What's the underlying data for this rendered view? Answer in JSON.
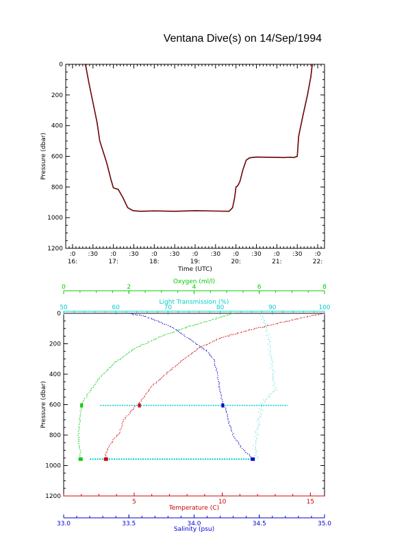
{
  "page": {
    "title": "Ventana Dive(s) on 14/Sep/1994"
  },
  "chart_data": [
    {
      "id": "dive-profile",
      "type": "line",
      "title": "",
      "xlabel": "Time (UTC)",
      "ylabel": "Pressure (dbar)",
      "ylim": [
        0,
        1200
      ],
      "y_inverted": true,
      "yticks": [
        "0",
        "200",
        "400",
        "600",
        "800",
        "1000",
        "1200"
      ],
      "xticks_minutes": [
        ":0",
        ":30",
        ":0",
        ":30",
        ":0",
        ":30",
        ":0",
        ":30",
        ":0",
        ":30",
        ":0",
        ":30",
        ":0"
      ],
      "xticks_hours": [
        "16:",
        "17:",
        "18:",
        "19:",
        "20:",
        "21:",
        "22:"
      ],
      "xlim": [
        "15:50",
        "22:10"
      ],
      "series": [
        {
          "line_color": "#cc0000",
          "shadow_color": "#000000",
          "x": [
            "16:19",
            "16:24",
            "16:30",
            "16:36",
            "16:40",
            "16:45",
            "16:50",
            "16:57",
            "17:00",
            "17:03",
            "17:07",
            "17:14",
            "17:21",
            "17:29",
            "17:40",
            "18:00",
            "18:30",
            "19:00",
            "19:30",
            "19:50",
            "19:55",
            "19:58",
            "20:00",
            "20:02",
            "20:04",
            "20:06",
            "20:10",
            "20:15",
            "20:20",
            "20:30",
            "21:00",
            "21:10",
            "21:20",
            "21:25",
            "21:30",
            "21:32",
            "21:38",
            "21:45",
            "21:50",
            "21:52"
          ],
          "y": [
            0,
            120,
            250,
            380,
            500,
            570,
            640,
            760,
            805,
            810,
            815,
            870,
            935,
            955,
            958,
            956,
            958,
            955,
            957,
            958,
            935,
            870,
            800,
            795,
            780,
            760,
            690,
            625,
            610,
            605,
            607,
            608,
            606,
            608,
            600,
            470,
            340,
            200,
            80,
            0
          ]
        }
      ]
    },
    {
      "id": "water-profiles",
      "type": "scatter",
      "title": "",
      "ylabel": "Pressure (dbar)",
      "ylim": [
        0,
        1200
      ],
      "y_inverted": true,
      "yticks": [
        "0",
        "200",
        "400",
        "600",
        "800",
        "1000",
        "1200"
      ],
      "axes": [
        {
          "label": "Oxygen (ml/l)",
          "position": "top",
          "color": "#00cc00",
          "range": [
            0,
            8
          ],
          "ticks": [
            "0",
            "2",
            "4",
            "6",
            "8"
          ]
        },
        {
          "label": "Light Transmission (%)",
          "position": "top",
          "color": "#00cccc",
          "range": [
            50,
            100
          ],
          "ticks": [
            "50",
            "60",
            "70",
            "80",
            "90",
            "100"
          ]
        },
        {
          "label": "Temperature (C)",
          "position": "bottom",
          "color": "#cc0000",
          "range": [
            1,
            15.8
          ],
          "ticks": [
            "5",
            "10",
            "15"
          ]
        },
        {
          "label": "Salinity (psu)",
          "position": "bottom",
          "color": "#0000cc",
          "range": [
            33.0,
            35.0
          ],
          "ticks": [
            "33.0",
            "33.5",
            "34.0",
            "34.5",
            "35.0"
          ]
        }
      ],
      "series": [
        {
          "axis": "Oxygen (ml/l)",
          "color": "#00cc00",
          "x": [
            5.2,
            4.6,
            3.8,
            3.0,
            2.2,
            1.6,
            1.1,
            0.75,
            0.6,
            0.55,
            0.5,
            0.45,
            0.5,
            0.52
          ],
          "y": [
            0,
            40,
            90,
            150,
            230,
            320,
            420,
            530,
            580,
            600,
            700,
            800,
            900,
            960
          ]
        },
        {
          "axis": "Light Transmission (%)",
          "color": "#00cccc",
          "x": [
            88,
            88.5,
            89,
            89.5,
            89.8,
            90,
            90.2,
            90.5,
            89,
            88,
            87.5,
            87,
            86.8,
            87,
            87.5
          ],
          "y": [
            0,
            60,
            120,
            200,
            280,
            360,
            430,
            500,
            560,
            600,
            700,
            800,
            880,
            930,
            960
          ]
        },
        {
          "axis": "Temperature (C)",
          "color": "#cc0000",
          "x": [
            15.8,
            14.5,
            13,
            11.5,
            10,
            8.8,
            7.8,
            6.8,
            6.0,
            5.5,
            5.2,
            5.0,
            4.4,
            4.2,
            3.9,
            3.6,
            3.4,
            3.4
          ],
          "y": [
            0,
            30,
            70,
            110,
            160,
            220,
            300,
            400,
            480,
            560,
            600,
            620,
            700,
            780,
            820,
            870,
            920,
            960
          ]
        },
        {
          "axis": "Salinity (psu)",
          "color": "#0000cc",
          "x": [
            33.5,
            33.62,
            33.75,
            33.85,
            33.93,
            34.02,
            34.1,
            34.15,
            34.18,
            34.2,
            34.22,
            34.24,
            34.26,
            34.3,
            34.36,
            34.42,
            34.45
          ],
          "y": [
            0,
            20,
            60,
            100,
            150,
            200,
            250,
            300,
            400,
            500,
            600,
            620,
            700,
            800,
            880,
            930,
            960
          ]
        }
      ],
      "horizontal_band": {
        "axis": "Light Transmission (%)",
        "color": "#00cccc",
        "y": 605,
        "x_from": 57,
        "x_to": 93
      },
      "bottom_band": {
        "axis": "Light Transmission (%)",
        "color": "#00cccc",
        "y": 958,
        "x_from": 55,
        "x_to": 86
      }
    }
  ]
}
